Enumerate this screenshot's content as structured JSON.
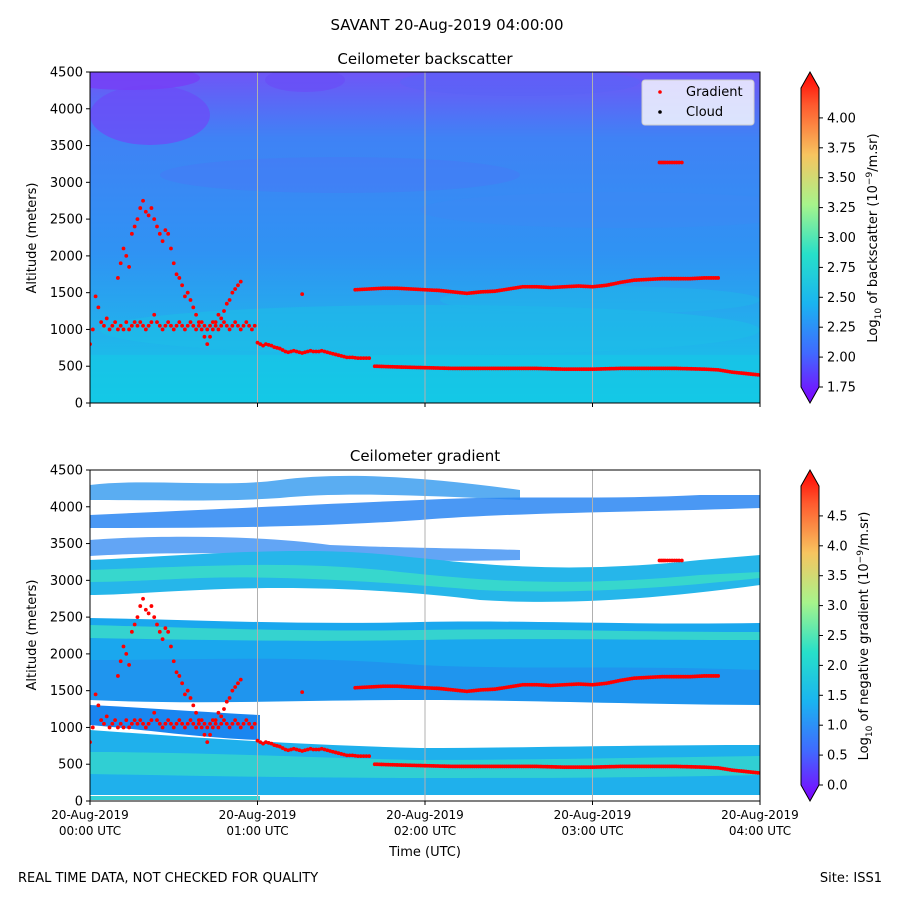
{
  "suptitle": "SAVANT 20-Aug-2019 04:00:00",
  "footer": {
    "left": "REAL TIME DATA, NOT CHECKED FOR QUALITY",
    "right": "Site: ISS1"
  },
  "legend": {
    "gradient_label": "Gradient",
    "cloud_label": "Cloud",
    "gradient_color": "#ff0000",
    "cloud_color": "#000000"
  },
  "chart_data": [
    {
      "type": "heatmap",
      "title": "Ceilometer backscatter",
      "xlabel": "",
      "ylabel": "Altitude (meters)",
      "xlim": [
        0,
        240
      ],
      "ylim": [
        0,
        4500
      ],
      "yticks": [
        0,
        500,
        1000,
        1500,
        2000,
        2500,
        3000,
        3500,
        4000,
        4500
      ],
      "ytick_labels": [
        "0",
        "500",
        "1000",
        "1500",
        "2000",
        "2500",
        "3000",
        "3500",
        "4000",
        "4500"
      ],
      "xticks_minutes": [
        0,
        60,
        120,
        180,
        240
      ],
      "xgrid": true,
      "colorbar": {
        "label_prefix": "Log",
        "label_sub": "10",
        "label_mid": " of backscatter (10",
        "label_sup": "−9",
        "label_suffix": "/m.sr)",
        "range": [
          1.75,
          4.25
        ],
        "ticks": [
          "1.75",
          "2.00",
          "2.25",
          "2.50",
          "2.75",
          "3.00",
          "3.25",
          "3.50",
          "3.75",
          "4.00"
        ],
        "tick_values": [
          1.75,
          2.0,
          2.25,
          2.5,
          2.75,
          3.0,
          3.25,
          3.5,
          3.75,
          4.0
        ]
      },
      "legend_position": "top-right"
    },
    {
      "type": "heatmap",
      "title": "Ceilometer gradient",
      "xlabel": "Time (UTC)",
      "ylabel": "Altitude (meters)",
      "xlim": [
        0,
        240
      ],
      "ylim": [
        0,
        4500
      ],
      "yticks": [
        0,
        500,
        1000,
        1500,
        2000,
        2500,
        3000,
        3500,
        4000,
        4500
      ],
      "ytick_labels": [
        "0",
        "500",
        "1000",
        "1500",
        "2000",
        "2500",
        "3000",
        "3500",
        "4000",
        "4500"
      ],
      "xticks_minutes": [
        0,
        60,
        120,
        180,
        240
      ],
      "xtick_labels": [
        [
          "20-Aug-2019",
          "00:00 UTC"
        ],
        [
          "20-Aug-2019",
          "01:00 UTC"
        ],
        [
          "20-Aug-2019",
          "02:00 UTC"
        ],
        [
          "20-Aug-2019",
          "03:00 UTC"
        ],
        [
          "20-Aug-2019",
          "04:00 UTC"
        ]
      ],
      "xgrid": true,
      "colorbar": {
        "label_prefix": "Log",
        "label_sub": "10",
        "label_mid": " of negative gradient (10",
        "label_sup": "−9",
        "label_suffix": "/m.sr)",
        "range": [
          0.0,
          5.0
        ],
        "ticks": [
          "0.0",
          "0.5",
          "1.0",
          "1.5",
          "2.0",
          "2.5",
          "3.0",
          "3.5",
          "4.0",
          "4.5"
        ],
        "tick_values": [
          0.0,
          0.5,
          1.0,
          1.5,
          2.0,
          2.5,
          3.0,
          3.5,
          4.0,
          4.5
        ]
      }
    }
  ],
  "gradient_series": {
    "name": "Gradient",
    "segments": [
      [
        [
          0,
          800
        ],
        [
          1,
          1000
        ],
        [
          2,
          1450
        ],
        [
          3,
          1300
        ],
        [
          4,
          1100
        ],
        [
          5,
          1050
        ],
        [
          6,
          1150
        ],
        [
          7,
          1000
        ],
        [
          8,
          1050
        ],
        [
          9,
          1100
        ],
        [
          10,
          1000
        ],
        [
          11,
          1050
        ],
        [
          12,
          1000
        ],
        [
          13,
          1100
        ],
        [
          14,
          1000
        ],
        [
          15,
          1050
        ],
        [
          16,
          1100
        ],
        [
          17,
          1050
        ],
        [
          18,
          1100
        ],
        [
          19,
          1050
        ],
        [
          20,
          1000
        ],
        [
          21,
          1050
        ],
        [
          22,
          1100
        ],
        [
          23,
          1200
        ],
        [
          24,
          1100
        ],
        [
          25,
          1050
        ],
        [
          26,
          1000
        ],
        [
          27,
          1050
        ],
        [
          28,
          1100
        ],
        [
          29,
          1050
        ],
        [
          30,
          1000
        ],
        [
          31,
          1050
        ],
        [
          32,
          1100
        ],
        [
          33,
          1050
        ],
        [
          34,
          1000
        ],
        [
          35,
          1050
        ],
        [
          36,
          1100
        ],
        [
          37,
          1050
        ],
        [
          38,
          1000
        ],
        [
          39,
          1050
        ],
        [
          40,
          1100
        ],
        [
          41,
          1050
        ],
        [
          42,
          1000
        ],
        [
          43,
          1050
        ],
        [
          44,
          1100
        ],
        [
          45,
          1050
        ],
        [
          46,
          1000
        ],
        [
          47,
          1050
        ],
        [
          48,
          1100
        ],
        [
          49,
          1050
        ],
        [
          50,
          1000
        ],
        [
          51,
          1050
        ],
        [
          52,
          1100
        ],
        [
          53,
          1050
        ],
        [
          54,
          1000
        ],
        [
          55,
          1050
        ],
        [
          56,
          1100
        ],
        [
          57,
          1050
        ],
        [
          58,
          1000
        ],
        [
          59,
          1050
        ]
      ],
      [
        [
          10,
          1700
        ],
        [
          11,
          1900
        ],
        [
          12,
          2100
        ],
        [
          13,
          2000
        ],
        [
          14,
          1850
        ],
        [
          15,
          2300
        ],
        [
          16,
          2400
        ],
        [
          17,
          2500
        ],
        [
          18,
          2650
        ],
        [
          19,
          2750
        ],
        [
          20,
          2600
        ],
        [
          21,
          2550
        ],
        [
          22,
          2650
        ],
        [
          23,
          2500
        ],
        [
          24,
          2400
        ],
        [
          25,
          2300
        ],
        [
          26,
          2200
        ],
        [
          27,
          2350
        ],
        [
          28,
          2300
        ],
        [
          29,
          2100
        ],
        [
          30,
          1900
        ],
        [
          31,
          1750
        ],
        [
          32,
          1700
        ],
        [
          33,
          1600
        ],
        [
          34,
          1450
        ],
        [
          35,
          1500
        ],
        [
          36,
          1400
        ],
        [
          37,
          1300
        ],
        [
          38,
          1200
        ],
        [
          39,
          1100
        ],
        [
          40,
          1000
        ],
        [
          41,
          900
        ],
        [
          42,
          800
        ],
        [
          43,
          900
        ],
        [
          44,
          1000
        ],
        [
          45,
          1100
        ],
        [
          46,
          1200
        ],
        [
          47,
          1150
        ],
        [
          48,
          1250
        ],
        [
          49,
          1350
        ],
        [
          50,
          1400
        ],
        [
          51,
          1500
        ],
        [
          52,
          1550
        ],
        [
          53,
          1600
        ],
        [
          54,
          1650
        ]
      ],
      [
        [
          60,
          820
        ],
        [
          61,
          800
        ],
        [
          62,
          780
        ],
        [
          63,
          800
        ],
        [
          64,
          790
        ],
        [
          65,
          780
        ],
        [
          66,
          760
        ],
        [
          67,
          750
        ],
        [
          68,
          740
        ],
        [
          69,
          720
        ],
        [
          70,
          700
        ],
        [
          71,
          690
        ],
        [
          72,
          700
        ],
        [
          73,
          710
        ],
        [
          74,
          700
        ],
        [
          75,
          690
        ],
        [
          76,
          680
        ],
        [
          77,
          690
        ],
        [
          78,
          700
        ],
        [
          79,
          710
        ],
        [
          80,
          700
        ],
        [
          81,
          700
        ],
        [
          82,
          700
        ],
        [
          83,
          710
        ],
        [
          84,
          700
        ],
        [
          85,
          690
        ],
        [
          86,
          680
        ],
        [
          87,
          670
        ],
        [
          88,
          660
        ],
        [
          89,
          650
        ],
        [
          90,
          640
        ],
        [
          91,
          630
        ],
        [
          92,
          620
        ],
        [
          93,
          620
        ],
        [
          94,
          620
        ],
        [
          95,
          615
        ],
        [
          96,
          610
        ],
        [
          97,
          610
        ],
        [
          98,
          610
        ],
        [
          99,
          610
        ],
        [
          100,
          610
        ]
      ],
      [
        [
          76,
          1480
        ]
      ],
      [
        [
          95,
          1540
        ],
        [
          100,
          1550
        ],
        [
          105,
          1560
        ],
        [
          110,
          1560
        ],
        [
          115,
          1550
        ],
        [
          120,
          1540
        ],
        [
          125,
          1530
        ],
        [
          130,
          1510
        ],
        [
          135,
          1490
        ],
        [
          140,
          1510
        ],
        [
          145,
          1520
        ],
        [
          150,
          1550
        ],
        [
          155,
          1580
        ],
        [
          160,
          1580
        ],
        [
          165,
          1570
        ],
        [
          170,
          1580
        ],
        [
          175,
          1590
        ],
        [
          180,
          1580
        ],
        [
          185,
          1600
        ],
        [
          190,
          1640
        ],
        [
          195,
          1670
        ],
        [
          200,
          1680
        ],
        [
          205,
          1690
        ],
        [
          210,
          1690
        ],
        [
          215,
          1690
        ],
        [
          220,
          1700
        ],
        [
          225,
          1700
        ]
      ],
      [
        [
          102,
          500
        ],
        [
          110,
          490
        ],
        [
          120,
          480
        ],
        [
          130,
          470
        ],
        [
          140,
          470
        ],
        [
          150,
          470
        ],
        [
          160,
          470
        ],
        [
          170,
          460
        ],
        [
          180,
          460
        ],
        [
          190,
          470
        ],
        [
          200,
          470
        ],
        [
          210,
          470
        ],
        [
          220,
          460
        ],
        [
          225,
          450
        ],
        [
          230,
          420
        ],
        [
          235,
          400
        ],
        [
          240,
          380
        ]
      ],
      [
        [
          204,
          3270
        ],
        [
          206,
          3270
        ],
        [
          211,
          3270
        ],
        [
          212,
          3270
        ]
      ]
    ]
  },
  "colors": {
    "axis": "#000000",
    "grid": "#b0b0b0",
    "bg_low": "#2e8df2",
    "bg_high": "#7a45f6",
    "boundary_layer": "#18c5e6",
    "gradient_points": "#ff0000"
  }
}
